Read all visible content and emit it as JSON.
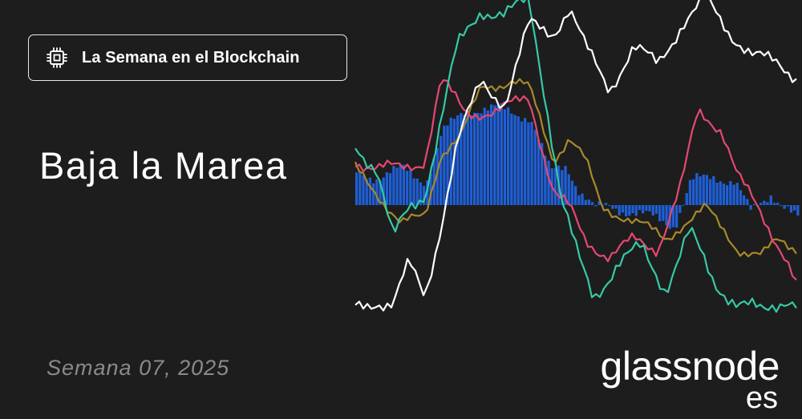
{
  "header": {
    "badge_label": "La Semana en el Blockchain",
    "badge_icon": "chip-icon"
  },
  "main": {
    "title": "Baja la Marea",
    "week": "Semana 07, 2025"
  },
  "brand": {
    "logo_text": "glassnode",
    "logo_suffix": "es"
  },
  "colors": {
    "background": "#1d1d1d",
    "bars": "#1f5fd6",
    "line_white": "#ffffff",
    "line_teal": "#37c9a5",
    "line_pink": "#e54871",
    "line_olive": "#a8892a"
  }
}
